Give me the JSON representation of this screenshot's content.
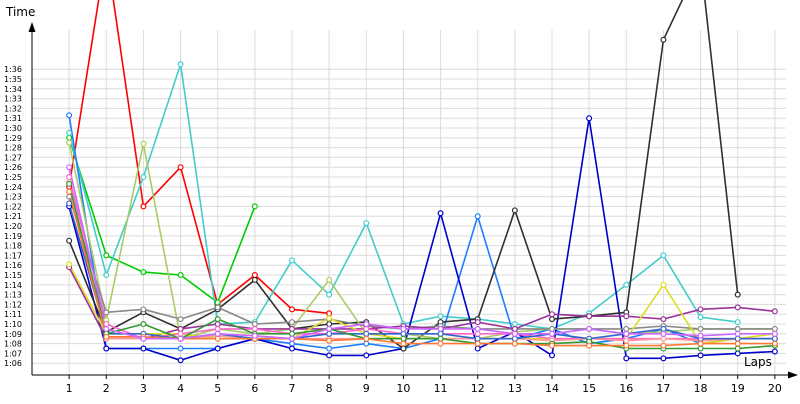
{
  "chart_data": {
    "type": "line",
    "xlabel": "Laps",
    "ylabel": "Time",
    "x": [
      1,
      2,
      3,
      4,
      5,
      6,
      7,
      8,
      9,
      10,
      11,
      12,
      13,
      14,
      15,
      16,
      17,
      18,
      19,
      20
    ],
    "x_tick_labels": [
      "1",
      "2",
      "3",
      "4",
      "5",
      "6",
      "7",
      "8",
      "9",
      "10",
      "11",
      "12",
      "13",
      "14",
      "15",
      "16",
      "17",
      "18",
      "19",
      "20"
    ],
    "y_tick_labels": [
      "1:06",
      "1:07",
      "1:08",
      "1:09",
      "1:10",
      "1:11",
      "1:12",
      "1:13",
      "1:14",
      "1:15",
      "1:16",
      "1:17",
      "1:18",
      "1:19",
      "1:20",
      "1:21",
      "1:22",
      "1:23",
      "1:24",
      "1:25",
      "1:26",
      "1:27",
      "1:28",
      "1:29",
      "1:30",
      "1:31",
      "1:32",
      "1:33",
      "1:34",
      "1:35",
      "1:36"
    ],
    "y_tick_seconds": [
      66,
      67,
      68,
      69,
      70,
      71,
      72,
      73,
      74,
      75,
      76,
      77,
      78,
      79,
      80,
      81,
      82,
      83,
      84,
      85,
      86,
      87,
      88,
      89,
      90,
      91,
      92,
      93,
      94,
      95,
      96
    ],
    "y_units": "seconds (m:ss)",
    "xlim": [
      0,
      20.3
    ],
    "ylim": [
      64.8,
      100
    ],
    "grid": true,
    "legend": "none",
    "series": [
      {
        "color": "#ff0000",
        "values": [
          84,
          108,
          82,
          86,
          72,
          75,
          71.5,
          71.1,
          null,
          null,
          null,
          null,
          null,
          null,
          null,
          null,
          null,
          null,
          null,
          null
        ]
      },
      {
        "color": "#00cc00",
        "values": [
          89,
          77,
          75.3,
          75,
          72.2,
          82,
          null,
          null,
          null,
          null,
          null,
          null,
          null,
          null,
          null,
          null,
          null,
          null,
          null,
          null
        ]
      },
      {
        "color": "#44cccc",
        "values": [
          89.5,
          75,
          85,
          96.5,
          70,
          70.2,
          76.5,
          73,
          80.3,
          70,
          70.8,
          70.5,
          70,
          69.5,
          71.1,
          74,
          77,
          70.7,
          70.2,
          null
        ]
      },
      {
        "color": "#1d7dff",
        "values": [
          91.3,
          67.5,
          67.5,
          67.5,
          67.5,
          68.5,
          68,
          67.5,
          68,
          67.5,
          68.5,
          81,
          68.5,
          69.5,
          68,
          68.5,
          69.5,
          68,
          68.5,
          68.5
        ]
      },
      {
        "color": "#0000cc",
        "values": [
          82,
          67.5,
          67.5,
          66.3,
          67.5,
          68.5,
          67.5,
          66.8,
          66.8,
          67.5,
          81.3,
          67.5,
          69.2,
          66.8,
          91,
          66.5,
          66.5,
          66.8,
          67,
          67.2
        ]
      },
      {
        "color": "#303030",
        "values": [
          78.5,
          69.2,
          71.2,
          69.5,
          71.5,
          74.5,
          69.5,
          70,
          70.2,
          67.5,
          70.2,
          70.5,
          81.6,
          70.5,
          70.8,
          71.2,
          99,
          107,
          73,
          null
        ]
      },
      {
        "color": "#aacc66",
        "values": [
          88.5,
          70.4,
          88.4,
          68.5,
          69.5,
          69,
          69.5,
          74.5,
          69,
          69,
          68.5,
          68.5,
          69.2,
          69.5,
          69.5,
          69,
          69.2,
          69.5,
          69.5,
          69.5
        ]
      },
      {
        "color": "#888888",
        "values": [
          83,
          71.2,
          71.5,
          70.5,
          71.7,
          70,
          70.2,
          70.5,
          69.8,
          69.5,
          69.8,
          69.5,
          69.5,
          69.5,
          69.5,
          69.5,
          69.8,
          69.5,
          69.5,
          69.5
        ]
      },
      {
        "color": "#993399",
        "values": [
          75.8,
          68.5,
          68.5,
          69.5,
          70,
          69.5,
          69.5,
          69.5,
          69.5,
          69.8,
          69.5,
          70.2,
          69.5,
          71,
          70.8,
          70.8,
          70.5,
          71.5,
          71.7,
          71.3
        ]
      },
      {
        "color": "#dddd22",
        "values": [
          76.1,
          69,
          69,
          69,
          68.5,
          68.5,
          68.5,
          70.6,
          69,
          68.5,
          68.5,
          68.5,
          68.5,
          68.5,
          68.5,
          68.5,
          74,
          68,
          68.5,
          69
        ]
      },
      {
        "color": "#ff66cc",
        "values": [
          85,
          70,
          68.5,
          69,
          69.5,
          69.5,
          69,
          69,
          69.5,
          69,
          69,
          69,
          69,
          68.5,
          68.5,
          68.5,
          68.5,
          68.5,
          68.5,
          68.5
        ]
      },
      {
        "color": "#ff9999",
        "values": [
          84.5,
          68.5,
          68.5,
          68.5,
          68.8,
          68.5,
          68.5,
          68.5,
          68.5,
          68.5,
          68.5,
          68.5,
          68.5,
          68.3,
          68.5,
          68.3,
          68.5,
          68.3,
          68.5,
          68.5
        ]
      },
      {
        "color": "#3366cc",
        "values": [
          82.3,
          69,
          69,
          68.5,
          69,
          68.5,
          68.5,
          69,
          69,
          69,
          69,
          68.5,
          68.5,
          69,
          68.5,
          69,
          69.5,
          68.5,
          68.5,
          68.5
        ]
      },
      {
        "color": "#339933",
        "values": [
          84.3,
          69,
          70,
          68.5,
          70.5,
          69,
          69,
          69.5,
          68.5,
          68.5,
          68.5,
          68,
          68,
          68,
          68.2,
          67.5,
          67.5,
          67.5,
          67.5,
          67.8
        ]
      },
      {
        "color": "#ff7733",
        "values": [
          83.5,
          68.7,
          68.7,
          68.5,
          68.5,
          68.5,
          68.5,
          68.3,
          68.5,
          68,
          68,
          68,
          68,
          67.8,
          67.8,
          67.8,
          67.8,
          68,
          68,
          68
        ]
      },
      {
        "color": "#cc66ff",
        "values": [
          86,
          69.5,
          68.5,
          68.5,
          69,
          68.8,
          68.5,
          69.5,
          70,
          69.5,
          69.5,
          69.5,
          69,
          69,
          69.5,
          69,
          69,
          68.8,
          69,
          69
        ]
      }
    ]
  }
}
